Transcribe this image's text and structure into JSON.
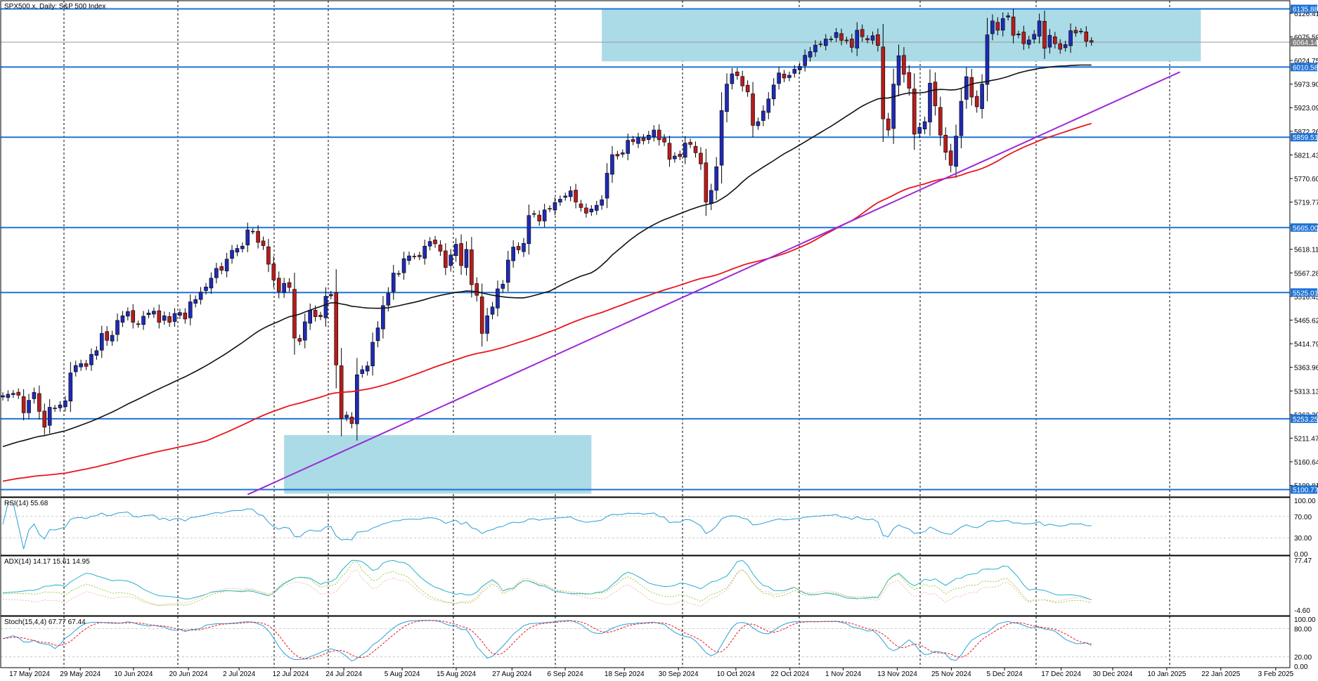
{
  "colors": {
    "bull": "#1f2bb4",
    "bear": "#b71c1c",
    "zone": "#aadbe6",
    "level_line": "#1f73d6",
    "level_tag": "#1f73d6",
    "ma_fast": "#111111",
    "ma_slow": "#e8151b",
    "trendline": "#9b2ad6",
    "rsi": "#2a9fd6",
    "adx_main": "#27b1c9",
    "adx_plus": "#9ccc3a",
    "adx_minus": "#f2b8b0",
    "stoch_main": "#2a9fd6",
    "stoch_signal": "#e8151b",
    "grid": "#000000",
    "price_tag_bg": "#808080"
  },
  "chart_data": [
    {
      "type": "candlestick",
      "title": "SPX500.x, Daily:  S&P 500 Index",
      "y_ticks": [
        "6126.41",
        "6075.59",
        "6024.75",
        "5973.90",
        "5923.09",
        "5872.26",
        "5821.43",
        "5770.60",
        "5719.77",
        "5668.94",
        "5618.11",
        "5567.28",
        "5516.45",
        "5465.62",
        "5414.79",
        "5363.96",
        "5313.13",
        "5262.30",
        "5211.47",
        "5160.64",
        "5109.81"
      ],
      "ylim": [
        5085,
        6155
      ],
      "x_ticks": [
        "17 May 2024",
        "29 May 2024",
        "10 Jun 2024",
        "20 Jun 2024",
        "2 Jul 2024",
        "12 Jul 2024",
        "24 Jul 2024",
        "5 Aug 2024",
        "15 Aug 2024",
        "27 Aug 2024",
        "6 Sep 2024",
        "18 Sep 2024",
        "30 Sep 2024",
        "10 Oct 2024",
        "22 Oct 2024",
        "1 Nov 2024",
        "13 Nov 2024",
        "25 Nov 2024",
        "5 Dec 2024",
        "17 Dec 2024",
        "30 Dec 2024",
        "10 Jan 2025",
        "22 Jan 2025",
        "3 Feb 2025"
      ],
      "level_tags": [
        "6135.88",
        "6064.14",
        "6010.58",
        "5859.51",
        "5665.00",
        "5525.01",
        "5253.25",
        "5100.77"
      ],
      "current_price": 6064.14,
      "support_resistance_levels": [
        6135.88,
        6010.58,
        5859.51,
        5665.0,
        5525.01,
        5253.25,
        5100.77
      ],
      "zones": [
        {
          "start_bar": 115,
          "end_bar": 230,
          "low": 6023,
          "high": 6137
        },
        {
          "start_bar": 54,
          "end_bar": 113,
          "low": 5092,
          "high": 5218
        }
      ],
      "trendline": {
        "start_bar": 47,
        "start_price": 5090,
        "end_bar": 226,
        "end_price": 6000
      },
      "candles_close": [
        5303,
        5306,
        5308,
        5304,
        5266,
        5293,
        5310,
        5269,
        5235,
        5278,
        5275,
        5283,
        5292,
        5352,
        5368,
        5372,
        5366,
        5392,
        5400,
        5437,
        5422,
        5433,
        5465,
        5475,
        5484,
        5461,
        5456,
        5474,
        5481,
        5485,
        5461,
        5475,
        5461,
        5480,
        5482,
        5468,
        5505,
        5510,
        5526,
        5537,
        5556,
        5577,
        5573,
        5597,
        5616,
        5620,
        5625,
        5660,
        5657,
        5633,
        5626,
        5586,
        5552,
        5527,
        5545,
        5536,
        5427,
        5420,
        5462,
        5487,
        5473,
        5473,
        5517,
        5521,
        5369,
        5254,
        5261,
        5243,
        5348,
        5359,
        5367,
        5418,
        5449,
        5497,
        5523,
        5567,
        5566,
        5598,
        5604,
        5603,
        5602,
        5625,
        5635,
        5630,
        5614,
        5579,
        5606,
        5629,
        5583,
        5618,
        5542,
        5519,
        5437,
        5475,
        5494,
        5533,
        5543,
        5595,
        5623,
        5617,
        5631,
        5691,
        5695,
        5679,
        5703,
        5705,
        5719,
        5726,
        5733,
        5744,
        5720,
        5708,
        5696,
        5705,
        5713,
        5725,
        5782,
        5822,
        5819,
        5826,
        5853,
        5850,
        5859,
        5852,
        5864,
        5875,
        5854,
        5849,
        5812,
        5819,
        5818,
        5847,
        5844,
        5826,
        5802,
        5720,
        5745,
        5796,
        5917,
        5974,
        5996,
        5992,
        5970,
        5957,
        5885,
        5893,
        5916,
        5942,
        5972,
        5998,
        5987,
        5993,
        6006,
        6012,
        6036,
        6044,
        6058,
        6060,
        6071,
        6071,
        6085,
        6068,
        6067,
        6053,
        6090,
        6076,
        6069,
        6078,
        6057,
        5899,
        5875,
        5974,
        6035,
        5995,
        5965,
        5866,
        5881,
        5893,
        5976,
        5927,
        5864,
        5827,
        5799,
        5862,
        5937,
        5990,
        5946,
        5925,
        5974,
        6080,
        6110,
        6090,
        6115,
        6121,
        6079,
        6082,
        6061,
        6069,
        6081,
        6110,
        6051,
        6079,
        6061,
        6049,
        6059,
        6089,
        6084,
        6088,
        6066,
        6064
      ],
      "ma_fast_end": 6005,
      "ma_slow_end": 5930
    },
    {
      "type": "line",
      "label": "RSI(14) 55.68",
      "y_ticks": [
        "100.00",
        "70.00",
        "30.00",
        "0.00"
      ],
      "ylim": [
        0,
        100
      ],
      "levels": [
        70,
        30
      ],
      "last_value": 55.68
    },
    {
      "type": "line",
      "label": "ADX(14) 14.17 15.61 14.95",
      "y_ticks": [
        "77.47",
        "-4.60"
      ],
      "ylim": [
        -4.6,
        77.47
      ],
      "series": [
        {
          "name": "ADX",
          "last_value": 14.17
        },
        {
          "name": "+DI",
          "last_value": 15.61
        },
        {
          "name": "-DI",
          "last_value": 14.95
        }
      ]
    },
    {
      "type": "line",
      "label": "Stoch(15,4,4) 67.77 67.44",
      "y_ticks": [
        "100.00",
        "80.00",
        "20.00",
        "0.00"
      ],
      "ylim": [
        0,
        100
      ],
      "levels": [
        80,
        20
      ],
      "series": [
        {
          "name": "Main",
          "last_value": 67.77
        },
        {
          "name": "Signal",
          "last_value": 67.44
        }
      ]
    }
  ]
}
